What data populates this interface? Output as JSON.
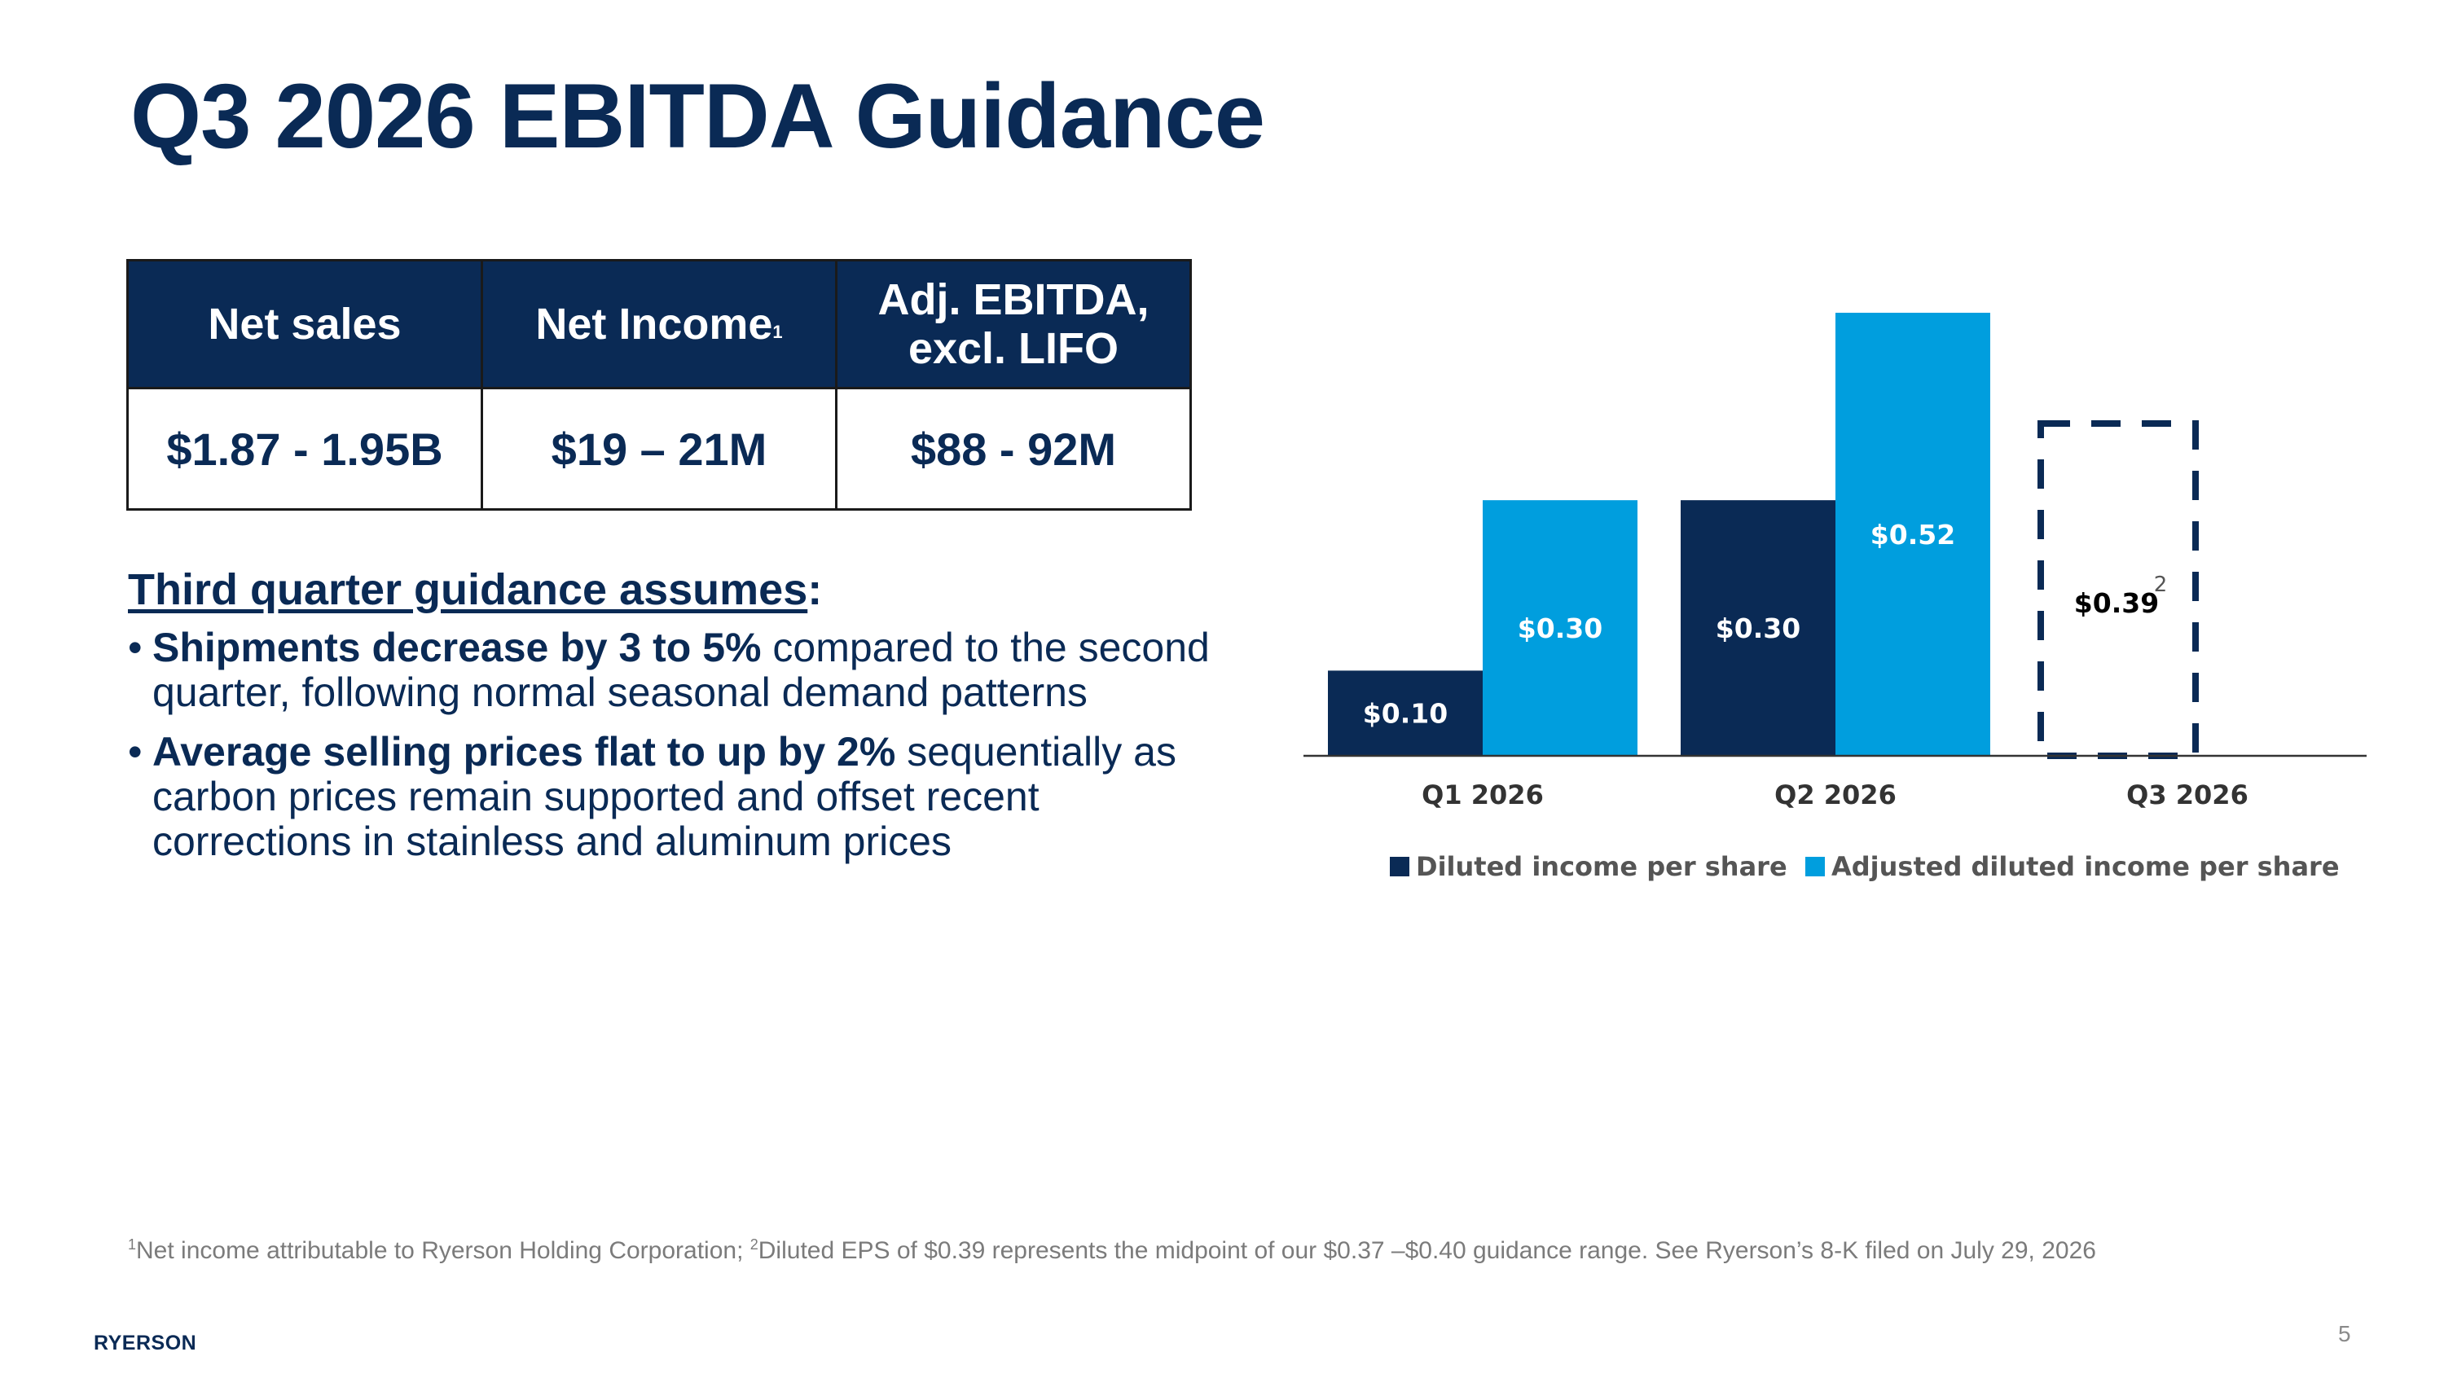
{
  "slide": {
    "title": "Q3 2026 EBITDA Guidance",
    "page_number": "5",
    "logo_text": "RYERSON"
  },
  "table": {
    "headers": [
      {
        "label": "Net sales",
        "sup": ""
      },
      {
        "label": "Net Income",
        "sup": "1"
      },
      {
        "label": "Adj. EBITDA,\nexcl. LIFO",
        "sup": ""
      }
    ],
    "values": [
      "$1.87 - 1.95B",
      "$19 – 21M",
      "$88 - 92M"
    ]
  },
  "assumptions": {
    "heading": "Third quarter guidance assumes",
    "heading_suffix": ":",
    "bullets": [
      {
        "bold": "Shipments decrease by 3 to 5%",
        "text": " compared to the second quarter, following normal seasonal demand patterns"
      },
      {
        "bold": "Average selling prices flat to up by 2%",
        "text": " sequentially as carbon prices remain supported and offset recent corrections in stainless and aluminum prices"
      }
    ]
  },
  "chart_data": {
    "type": "bar",
    "categories": [
      "Q1 2026",
      "Q2 2026",
      "Q3 2026"
    ],
    "series": [
      {
        "name": "Diluted income per share",
        "color": "#0a2a55",
        "values": [
          0.1,
          0.3,
          null
        ],
        "labels": [
          "$0.10",
          "$0.30",
          ""
        ]
      },
      {
        "name": "Adjusted diluted income per share",
        "color": "#009ede",
        "values": [
          0.3,
          0.52,
          null
        ],
        "labels": [
          "$0.30",
          "$0.52",
          ""
        ]
      }
    ],
    "guidance": {
      "category": "Q3 2026",
      "value": 0.39,
      "label": "$0.39",
      "sup": "2",
      "style": "dashed-outline"
    },
    "ylim": [
      0,
      0.52
    ],
    "legend_position": "bottom",
    "grid": false
  },
  "footnote": {
    "sup1": "1",
    "part1": "Net income attributable to Ryerson Holding Corporation; ",
    "sup2": "2",
    "part2": "Diluted EPS of $0.39 represents the midpoint of our $0.37 –$0.40 guidance range. See Ryerson’s 8-K filed on July 29, 2026"
  }
}
